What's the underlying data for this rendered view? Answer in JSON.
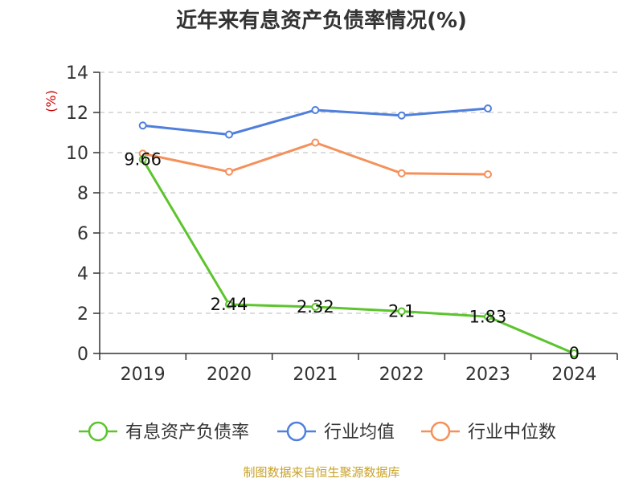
{
  "chart_data": {
    "type": "line",
    "title": "近年来有息资产负债率情况(%)",
    "ylabel": "(%)",
    "xlabel": "",
    "categories": [
      "2019",
      "2020",
      "2021",
      "2022",
      "2023",
      "2024"
    ],
    "ylim": [
      0,
      14
    ],
    "yticks": [
      0,
      2,
      4,
      6,
      8,
      10,
      12,
      14
    ],
    "grid": true,
    "legend_position": "bottom",
    "series": [
      {
        "name": "有息资产负债率",
        "color": "#5cc42d",
        "values": [
          9.66,
          2.44,
          2.32,
          2.1,
          1.83,
          0
        ],
        "labels": [
          "9.66",
          "2.44",
          "2.32",
          "2.1",
          "1.83",
          "0"
        ]
      },
      {
        "name": "行业均值",
        "color": "#4f7fdc",
        "values": [
          11.35,
          10.9,
          12.12,
          11.85,
          12.2,
          null
        ]
      },
      {
        "name": "行业中位数",
        "color": "#f5905a",
        "values": [
          9.95,
          9.05,
          10.5,
          8.97,
          8.92,
          null
        ]
      }
    ],
    "source": "制图数据来自恒生聚源数据库"
  }
}
